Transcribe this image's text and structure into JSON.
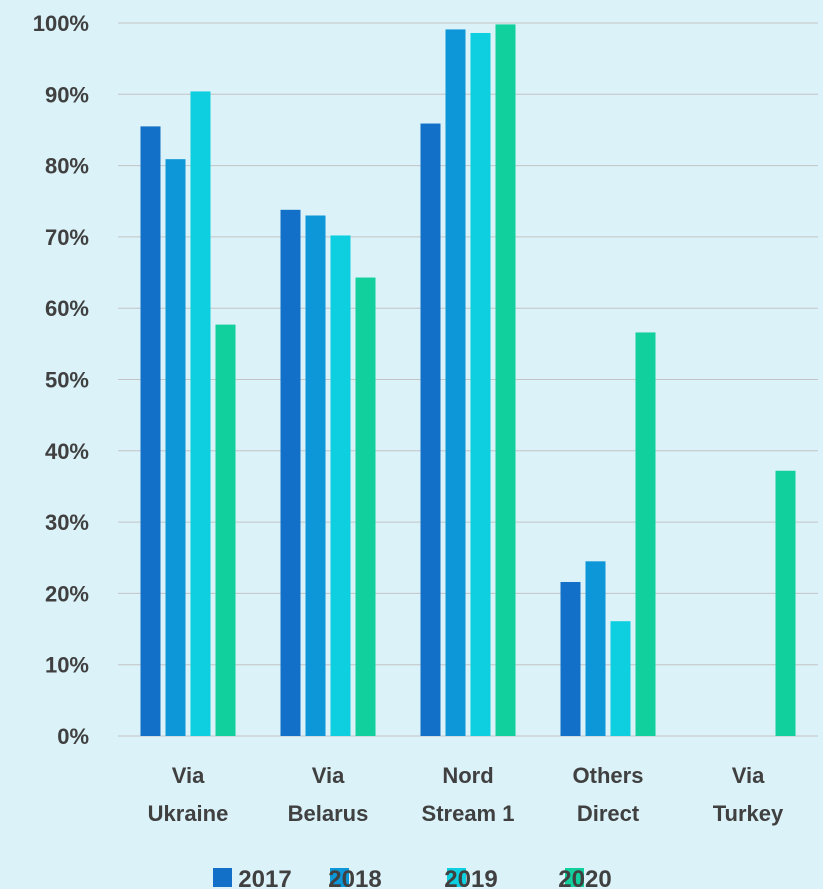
{
  "chart_data": {
    "type": "bar",
    "categories": [
      [
        "Via",
        "Ukraine"
      ],
      [
        "Via",
        "Belarus"
      ],
      [
        "Nord",
        "Stream 1"
      ],
      [
        "Others",
        "Direct"
      ],
      [
        "Via",
        "Turkey"
      ]
    ],
    "series": [
      {
        "name": "2017",
        "color": "#1370c8",
        "values": [
          85.5,
          73.8,
          85.9,
          21.6,
          null
        ]
      },
      {
        "name": "2018",
        "color": "#0d96d8",
        "values": [
          80.9,
          73.0,
          99.1,
          24.5,
          null
        ]
      },
      {
        "name": "2019",
        "color": "#0ecfe0",
        "values": [
          90.4,
          70.2,
          98.6,
          16.1,
          null
        ]
      },
      {
        "name": "2020",
        "color": "#12d09e",
        "values": [
          57.7,
          64.3,
          99.8,
          56.6,
          37.2
        ]
      }
    ],
    "ylim": [
      0,
      100
    ],
    "yticks": [
      "0%",
      "10%",
      "20%",
      "30%",
      "40%",
      "50%",
      "60%",
      "70%",
      "80%",
      "90%",
      "100%"
    ],
    "grid": true,
    "legend_position": "bottom"
  }
}
